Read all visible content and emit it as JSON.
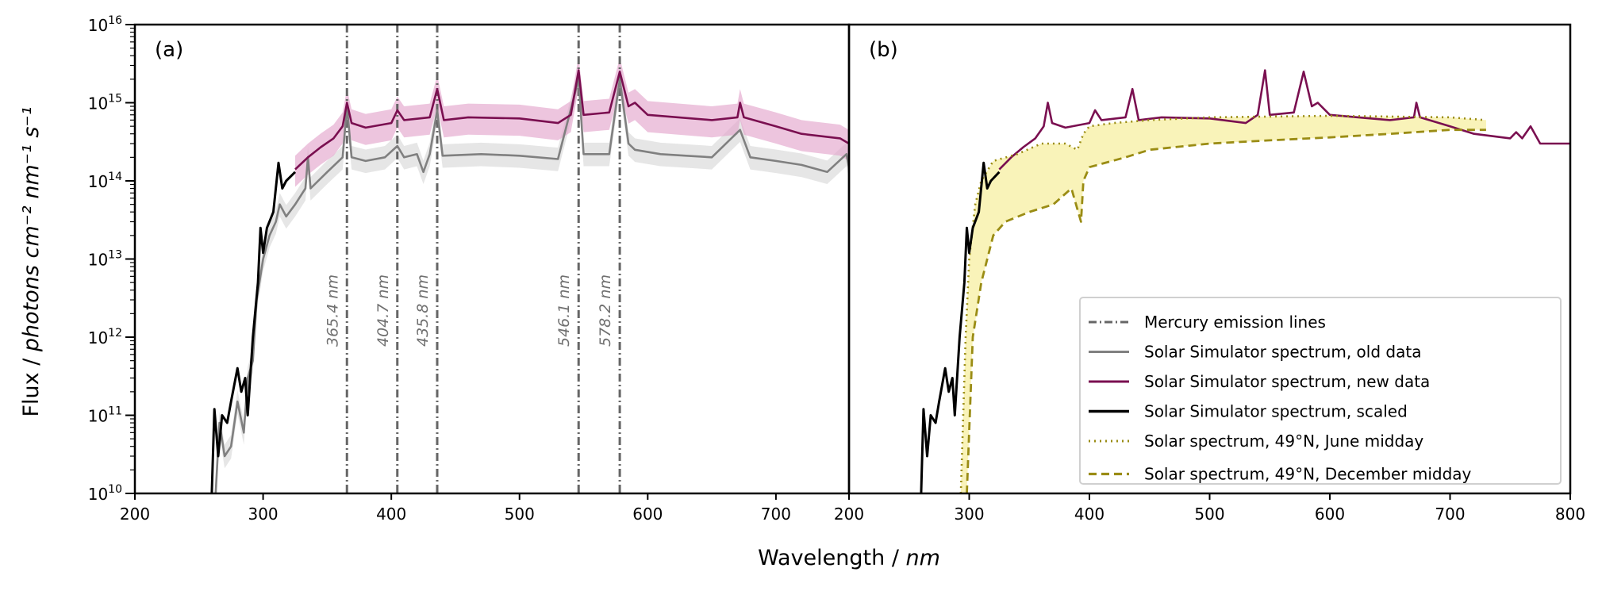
{
  "chart_data": [
    {
      "type": "line",
      "panel_label": "(a)",
      "xlim": [
        200,
        757
      ],
      "ylim": [
        10000000000.0,
        1e+16
      ],
      "yscale": "log",
      "grid": false,
      "xticks": [
        200,
        300,
        400,
        500,
        600,
        700
      ],
      "annotations": [
        "365.4 nm",
        "404.7 nm",
        "435.8 nm",
        "546.1 nm",
        "578.2 nm"
      ],
      "mercury_lines": [
        365.4,
        404.7,
        435.8,
        546.1,
        578.2
      ],
      "series": [
        {
          "key": "old",
          "band_factor": [
            0.7,
            1.4
          ],
          "points": [
            [
              263,
              10000000000.0
            ],
            [
              266,
              80000000000.0
            ],
            [
              270,
              30000000000.0
            ],
            [
              275,
              40000000000.0
            ],
            [
              280,
              150000000000.0
            ],
            [
              285,
              60000000000.0
            ],
            [
              288,
              300000000000.0
            ],
            [
              292,
              500000000000.0
            ],
            [
              295,
              3000000000000.0
            ],
            [
              300,
              10000000000000.0
            ],
            [
              305,
              20000000000000.0
            ],
            [
              310,
              30000000000000.0
            ],
            [
              313,
              50000000000000.0
            ],
            [
              318,
              35000000000000.0
            ],
            [
              325,
              50000000000000.0
            ],
            [
              333,
              80000000000000.0
            ],
            [
              335,
              200000000000000.0
            ],
            [
              337,
              80000000000000.0
            ],
            [
              350,
              130000000000000.0
            ],
            [
              362,
              200000000000000.0
            ],
            [
              365.4,
              900000000000000.0
            ],
            [
              369,
              200000000000000.0
            ],
            [
              380,
              180000000000000.0
            ],
            [
              395,
              200000000000000.0
            ],
            [
              404.7,
              280000000000000.0
            ],
            [
              410,
              200000000000000.0
            ],
            [
              420,
              220000000000000.0
            ],
            [
              425,
              130000000000000.0
            ],
            [
              430,
              220000000000000.0
            ],
            [
              435.8,
              800000000000000.0
            ],
            [
              440,
              210000000000000.0
            ],
            [
              470,
              220000000000000.0
            ],
            [
              500,
              210000000000000.0
            ],
            [
              530,
              190000000000000.0
            ],
            [
              546.1,
              2000000000000000.0
            ],
            [
              550,
              220000000000000.0
            ],
            [
              570,
              220000000000000.0
            ],
            [
              578.2,
              2000000000000000.0
            ],
            [
              585,
              300000000000000.0
            ],
            [
              590,
              250000000000000.0
            ],
            [
              610,
              220000000000000.0
            ],
            [
              630,
              210000000000000.0
            ],
            [
              650,
              200000000000000.0
            ],
            [
              672,
              450000000000000.0
            ],
            [
              680,
              200000000000000.0
            ],
            [
              700,
              180000000000000.0
            ],
            [
              720,
              160000000000000.0
            ],
            [
              740,
              130000000000000.0
            ],
            [
              755,
              220000000000000.0
            ],
            [
              758,
              120000000000000.0
            ]
          ]
        },
        {
          "key": "new",
          "band_factor": [
            0.6,
            1.5
          ],
          "points": [
            [
              325,
              140000000000000.0
            ],
            [
              335,
              200000000000000.0
            ],
            [
              345,
              270000000000000.0
            ],
            [
              355,
              350000000000000.0
            ],
            [
              362,
              500000000000000.0
            ],
            [
              365.4,
              1000000000000000.0
            ],
            [
              369,
              550000000000000.0
            ],
            [
              380,
              480000000000000.0
            ],
            [
              400,
              550000000000000.0
            ],
            [
              404.7,
              800000000000000.0
            ],
            [
              410,
              600000000000000.0
            ],
            [
              430,
              650000000000000.0
            ],
            [
              435.8,
              1500000000000000.0
            ],
            [
              441,
              600000000000000.0
            ],
            [
              460,
              650000000000000.0
            ],
            [
              500,
              630000000000000.0
            ],
            [
              530,
              550000000000000.0
            ],
            [
              540,
              700000000000000.0
            ],
            [
              546.1,
              2600000000000000.0
            ],
            [
              550,
              700000000000000.0
            ],
            [
              570,
              750000000000000.0
            ],
            [
              578.2,
              2500000000000000.0
            ],
            [
              585,
              900000000000000.0
            ],
            [
              590,
              1000000000000000.0
            ],
            [
              600,
              700000000000000.0
            ],
            [
              650,
              600000000000000.0
            ],
            [
              670,
              650000000000000.0
            ],
            [
              672,
              1000000000000000.0
            ],
            [
              675,
              650000000000000.0
            ],
            [
              700,
              500000000000000.0
            ],
            [
              720,
              400000000000000.0
            ],
            [
              750,
              350000000000000.0
            ],
            [
              757,
              300000000000000.0
            ]
          ]
        },
        {
          "key": "scaled",
          "points": [
            [
              260,
              10000000000.0
            ],
            [
              262,
              120000000000.0
            ],
            [
              265,
              30000000000.0
            ],
            [
              268,
              100000000000.0
            ],
            [
              272,
              80000000000.0
            ],
            [
              275,
              150000000000.0
            ],
            [
              280,
              400000000000.0
            ],
            [
              283,
              200000000000.0
            ],
            [
              286,
              300000000000.0
            ],
            [
              288,
              100000000000.0
            ],
            [
              292,
              1000000000000.0
            ],
            [
              296,
              5000000000000.0
            ],
            [
              298,
              25000000000000.0
            ],
            [
              300,
              12000000000000.0
            ],
            [
              303,
              25000000000000.0
            ],
            [
              308,
              40000000000000.0
            ],
            [
              312,
              170000000000000.0
            ],
            [
              315,
              80000000000000.0
            ],
            [
              318,
              100000000000000.0
            ],
            [
              325,
              130000000000000.0
            ]
          ]
        }
      ]
    },
    {
      "type": "line",
      "panel_label": "(b)",
      "xlim": [
        200,
        800
      ],
      "ylim": [
        10000000000.0,
        1e+16
      ],
      "yscale": "log",
      "grid": false,
      "xticks": [
        200,
        300,
        400,
        500,
        600,
        700,
        800
      ],
      "series": [
        {
          "key": "new",
          "points": [
            [
              325,
              140000000000000.0
            ],
            [
              335,
              200000000000000.0
            ],
            [
              345,
              270000000000000.0
            ],
            [
              355,
              350000000000000.0
            ],
            [
              362,
              500000000000000.0
            ],
            [
              365.4,
              1000000000000000.0
            ],
            [
              369,
              550000000000000.0
            ],
            [
              380,
              480000000000000.0
            ],
            [
              400,
              550000000000000.0
            ],
            [
              404.7,
              800000000000000.0
            ],
            [
              410,
              600000000000000.0
            ],
            [
              430,
              650000000000000.0
            ],
            [
              435.8,
              1500000000000000.0
            ],
            [
              441,
              600000000000000.0
            ],
            [
              460,
              650000000000000.0
            ],
            [
              500,
              630000000000000.0
            ],
            [
              530,
              550000000000000.0
            ],
            [
              540,
              700000000000000.0
            ],
            [
              546.1,
              2600000000000000.0
            ],
            [
              550,
              700000000000000.0
            ],
            [
              570,
              750000000000000.0
            ],
            [
              578.2,
              2500000000000000.0
            ],
            [
              585,
              900000000000000.0
            ],
            [
              590,
              1000000000000000.0
            ],
            [
              600,
              700000000000000.0
            ],
            [
              650,
              600000000000000.0
            ],
            [
              670,
              650000000000000.0
            ],
            [
              672,
              1000000000000000.0
            ],
            [
              675,
              650000000000000.0
            ],
            [
              700,
              500000000000000.0
            ],
            [
              720,
              400000000000000.0
            ],
            [
              750,
              350000000000000.0
            ],
            [
              755,
              420000000000000.0
            ],
            [
              760,
              350000000000000.0
            ],
            [
              767,
              500000000000000.0
            ],
            [
              775,
              300000000000000.0
            ],
            [
              800,
              300000000000000.0
            ]
          ]
        },
        {
          "key": "scaled",
          "points": [
            [
              260,
              10000000000.0
            ],
            [
              262,
              120000000000.0
            ],
            [
              265,
              30000000000.0
            ],
            [
              268,
              100000000000.0
            ],
            [
              272,
              80000000000.0
            ],
            [
              275,
              150000000000.0
            ],
            [
              280,
              400000000000.0
            ],
            [
              283,
              200000000000.0
            ],
            [
              286,
              300000000000.0
            ],
            [
              288,
              100000000000.0
            ],
            [
              292,
              1000000000000.0
            ],
            [
              296,
              5000000000000.0
            ],
            [
              298,
              25000000000000.0
            ],
            [
              300,
              12000000000000.0
            ],
            [
              303,
              25000000000000.0
            ],
            [
              308,
              40000000000000.0
            ],
            [
              312,
              170000000000000.0
            ],
            [
              315,
              80000000000000.0
            ],
            [
              318,
              100000000000000.0
            ],
            [
              325,
              130000000000000.0
            ]
          ]
        },
        {
          "key": "june",
          "points": [
            [
              293,
              10000000000.0
            ],
            [
              297,
              1000000000000.0
            ],
            [
              300,
              10000000000000.0
            ],
            [
              305,
              50000000000000.0
            ],
            [
              310,
              100000000000000.0
            ],
            [
              320,
              180000000000000.0
            ],
            [
              340,
              220000000000000.0
            ],
            [
              360,
              300000000000000.0
            ],
            [
              380,
              300000000000000.0
            ],
            [
              390,
              250000000000000.0
            ],
            [
              395,
              400000000000000.0
            ],
            [
              400,
              500000000000000.0
            ],
            [
              420,
              550000000000000.0
            ],
            [
              450,
              600000000000000.0
            ],
            [
              500,
              650000000000000.0
            ],
            [
              600,
              680000000000000.0
            ],
            [
              700,
              650000000000000.0
            ],
            [
              730,
              600000000000000.0
            ]
          ]
        },
        {
          "key": "december",
          "points": [
            [
              298,
              10000000000.0
            ],
            [
              303,
              1000000000000.0
            ],
            [
              310,
              5000000000000.0
            ],
            [
              320,
              20000000000000.0
            ],
            [
              330,
              30000000000000.0
            ],
            [
              350,
              40000000000000.0
            ],
            [
              370,
              50000000000000.0
            ],
            [
              385,
              80000000000000.0
            ],
            [
              393,
              30000000000000.0
            ],
            [
              395,
              100000000000000.0
            ],
            [
              400,
              150000000000000.0
            ],
            [
              430,
              200000000000000.0
            ],
            [
              450,
              250000000000000.0
            ],
            [
              500,
              300000000000000.0
            ],
            [
              550,
              330000000000000.0
            ],
            [
              600,
              360000000000000.0
            ],
            [
              650,
              400000000000000.0
            ],
            [
              700,
              450000000000000.0
            ],
            [
              730,
              450000000000000.0
            ]
          ]
        }
      ]
    }
  ],
  "axes": {
    "xlabel": "Wavelength / ",
    "xlabel_unit": "nm",
    "ylabel": "Flux / ",
    "ylabel_unit": "photons cm⁻² nm⁻¹ s⁻¹",
    "ytick_exponents": [
      "10",
      "11",
      "12",
      "13",
      "14",
      "15",
      "16"
    ],
    "ytick_base": "10"
  },
  "legend": {
    "position": "lower-right of panel (b)",
    "entries": [
      {
        "key": "mercury",
        "label": "Mercury emission lines",
        "style": "dashdot"
      },
      {
        "key": "old",
        "label": "Solar Simulator spectrum, old data",
        "style": "solid"
      },
      {
        "key": "new",
        "label": "Solar Simulator spectrum, new data",
        "style": "solid"
      },
      {
        "key": "scaled",
        "label": "Solar Simulator spectrum, scaled",
        "style": "solid"
      },
      {
        "key": "june",
        "label": "Solar spectrum, 49°N, June midday",
        "style": "dotted"
      },
      {
        "key": "december",
        "label": "Solar spectrum, 49°N, December midday",
        "style": "dashed"
      }
    ]
  },
  "colors": {
    "mercury": "#666666",
    "old": "#808080",
    "old_band": "#d9d9d9",
    "new": "#7a0f50",
    "new_band": "#e3a6cc",
    "scaled": "#000000",
    "june": "#9a8c14",
    "december": "#9a8c14",
    "solar_band": "#f7f0a8"
  }
}
